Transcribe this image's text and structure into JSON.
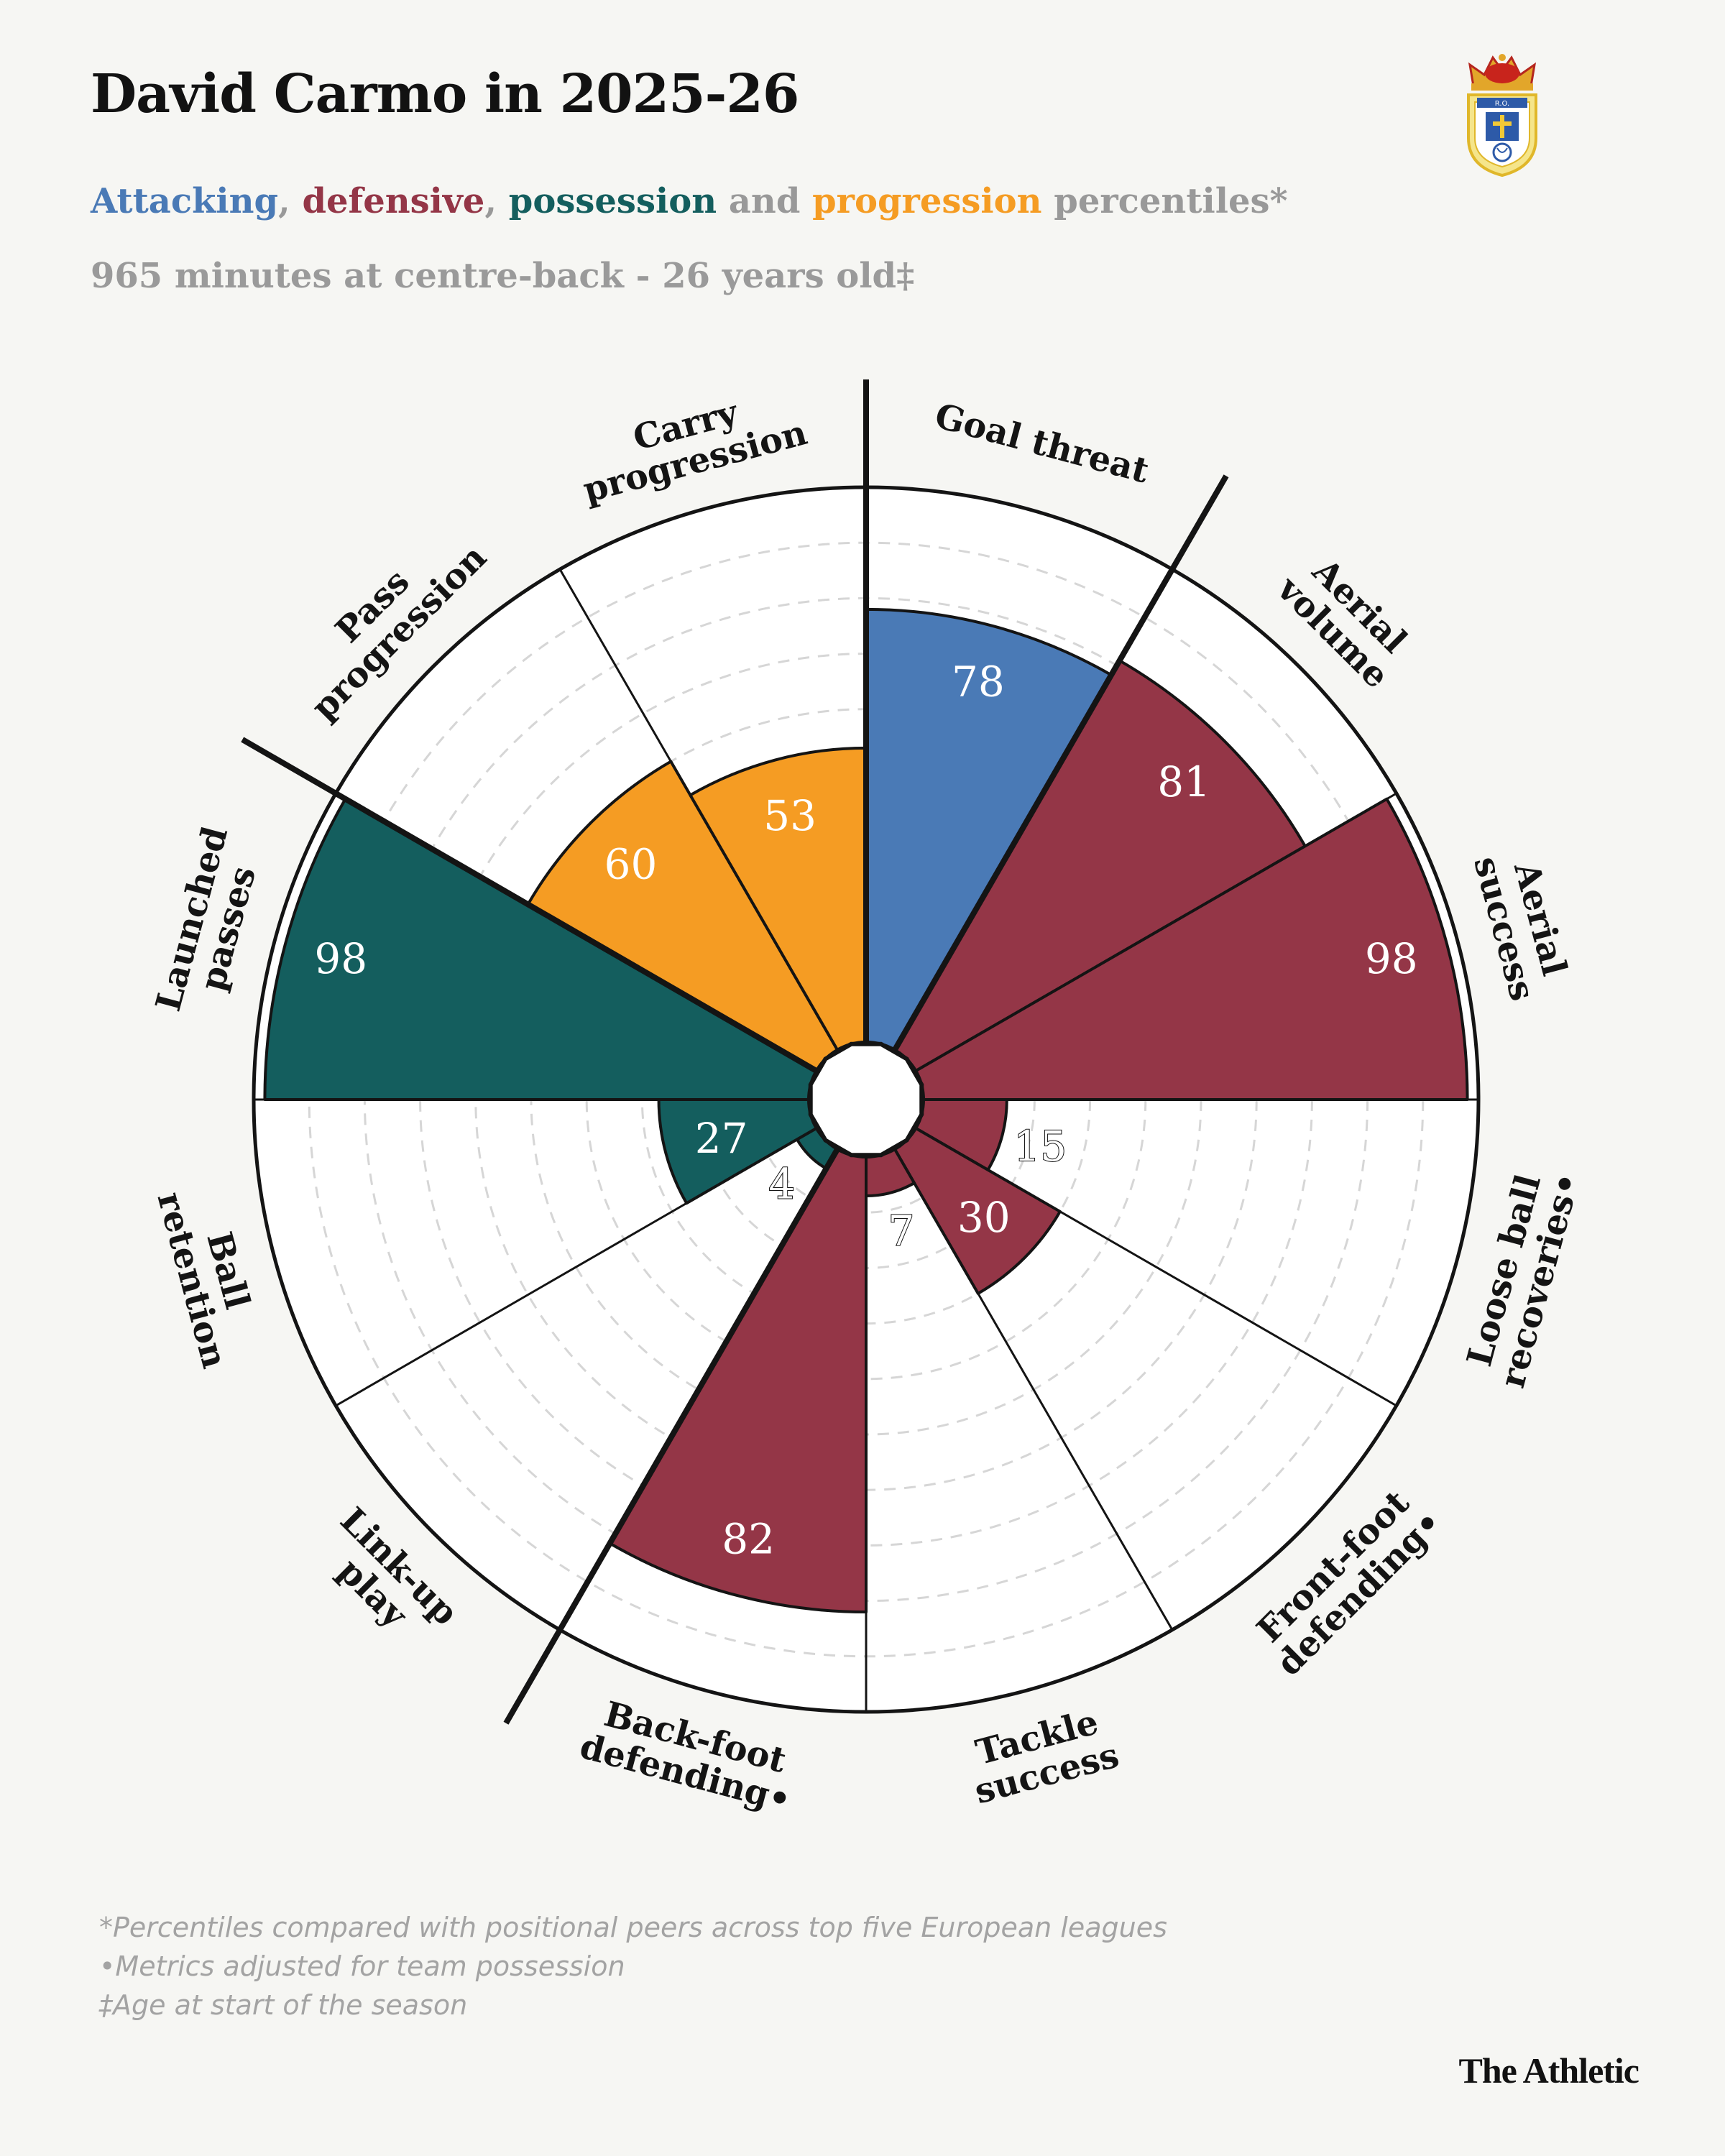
{
  "title": "David Carmo in 2025-26",
  "subtitle": {
    "attacking": "Attacking",
    "sep1": ", ",
    "defensive": "defensive",
    "sep2": ", ",
    "possession": "possession",
    "and": " and ",
    "progression": "progression",
    "rest": " percentiles*"
  },
  "detail": "965 minutes at centre-back - 26 years old‡",
  "crest": {
    "badge_text": "R.O."
  },
  "colors": {
    "attacking": "#4a7ab6",
    "defensive": "#943647",
    "possession": "#145e5e",
    "progression": "#f59c23",
    "muted": "#999999",
    "background": "#f6f6f3"
  },
  "chart_data": {
    "type": "polar-bar",
    "scale": [
      0,
      100
    ],
    "grid": true,
    "metrics": [
      {
        "label": "Goal threat",
        "value": 78,
        "group": "attacking"
      },
      {
        "label": "Aerial volume",
        "value": 81,
        "group": "defensive"
      },
      {
        "label": "Aerial success",
        "value": 98,
        "group": "defensive"
      },
      {
        "label": "Loose ball recoveries•",
        "value": 15,
        "group": "defensive"
      },
      {
        "label": "Front-foot defending•",
        "value": 30,
        "group": "defensive"
      },
      {
        "label": "Tackle success",
        "value": 7,
        "group": "defensive"
      },
      {
        "label": "Back-foot defending•",
        "value": 82,
        "group": "defensive"
      },
      {
        "label": "Link-up play",
        "value": 4,
        "group": "possession"
      },
      {
        "label": "Ball retention",
        "value": 27,
        "group": "possession"
      },
      {
        "label": "Launched passes",
        "value": 98,
        "group": "possession"
      },
      {
        "label": "Pass progression",
        "value": 60,
        "group": "progression"
      },
      {
        "label": "Carry progression",
        "value": 53,
        "group": "progression"
      }
    ]
  },
  "footnotes": [
    "*Percentiles compared with positional peers across top five European leagues",
    "•Metrics adjusted for team possession",
    "‡Age at start of the season"
  ],
  "brand": "The Athletic"
}
